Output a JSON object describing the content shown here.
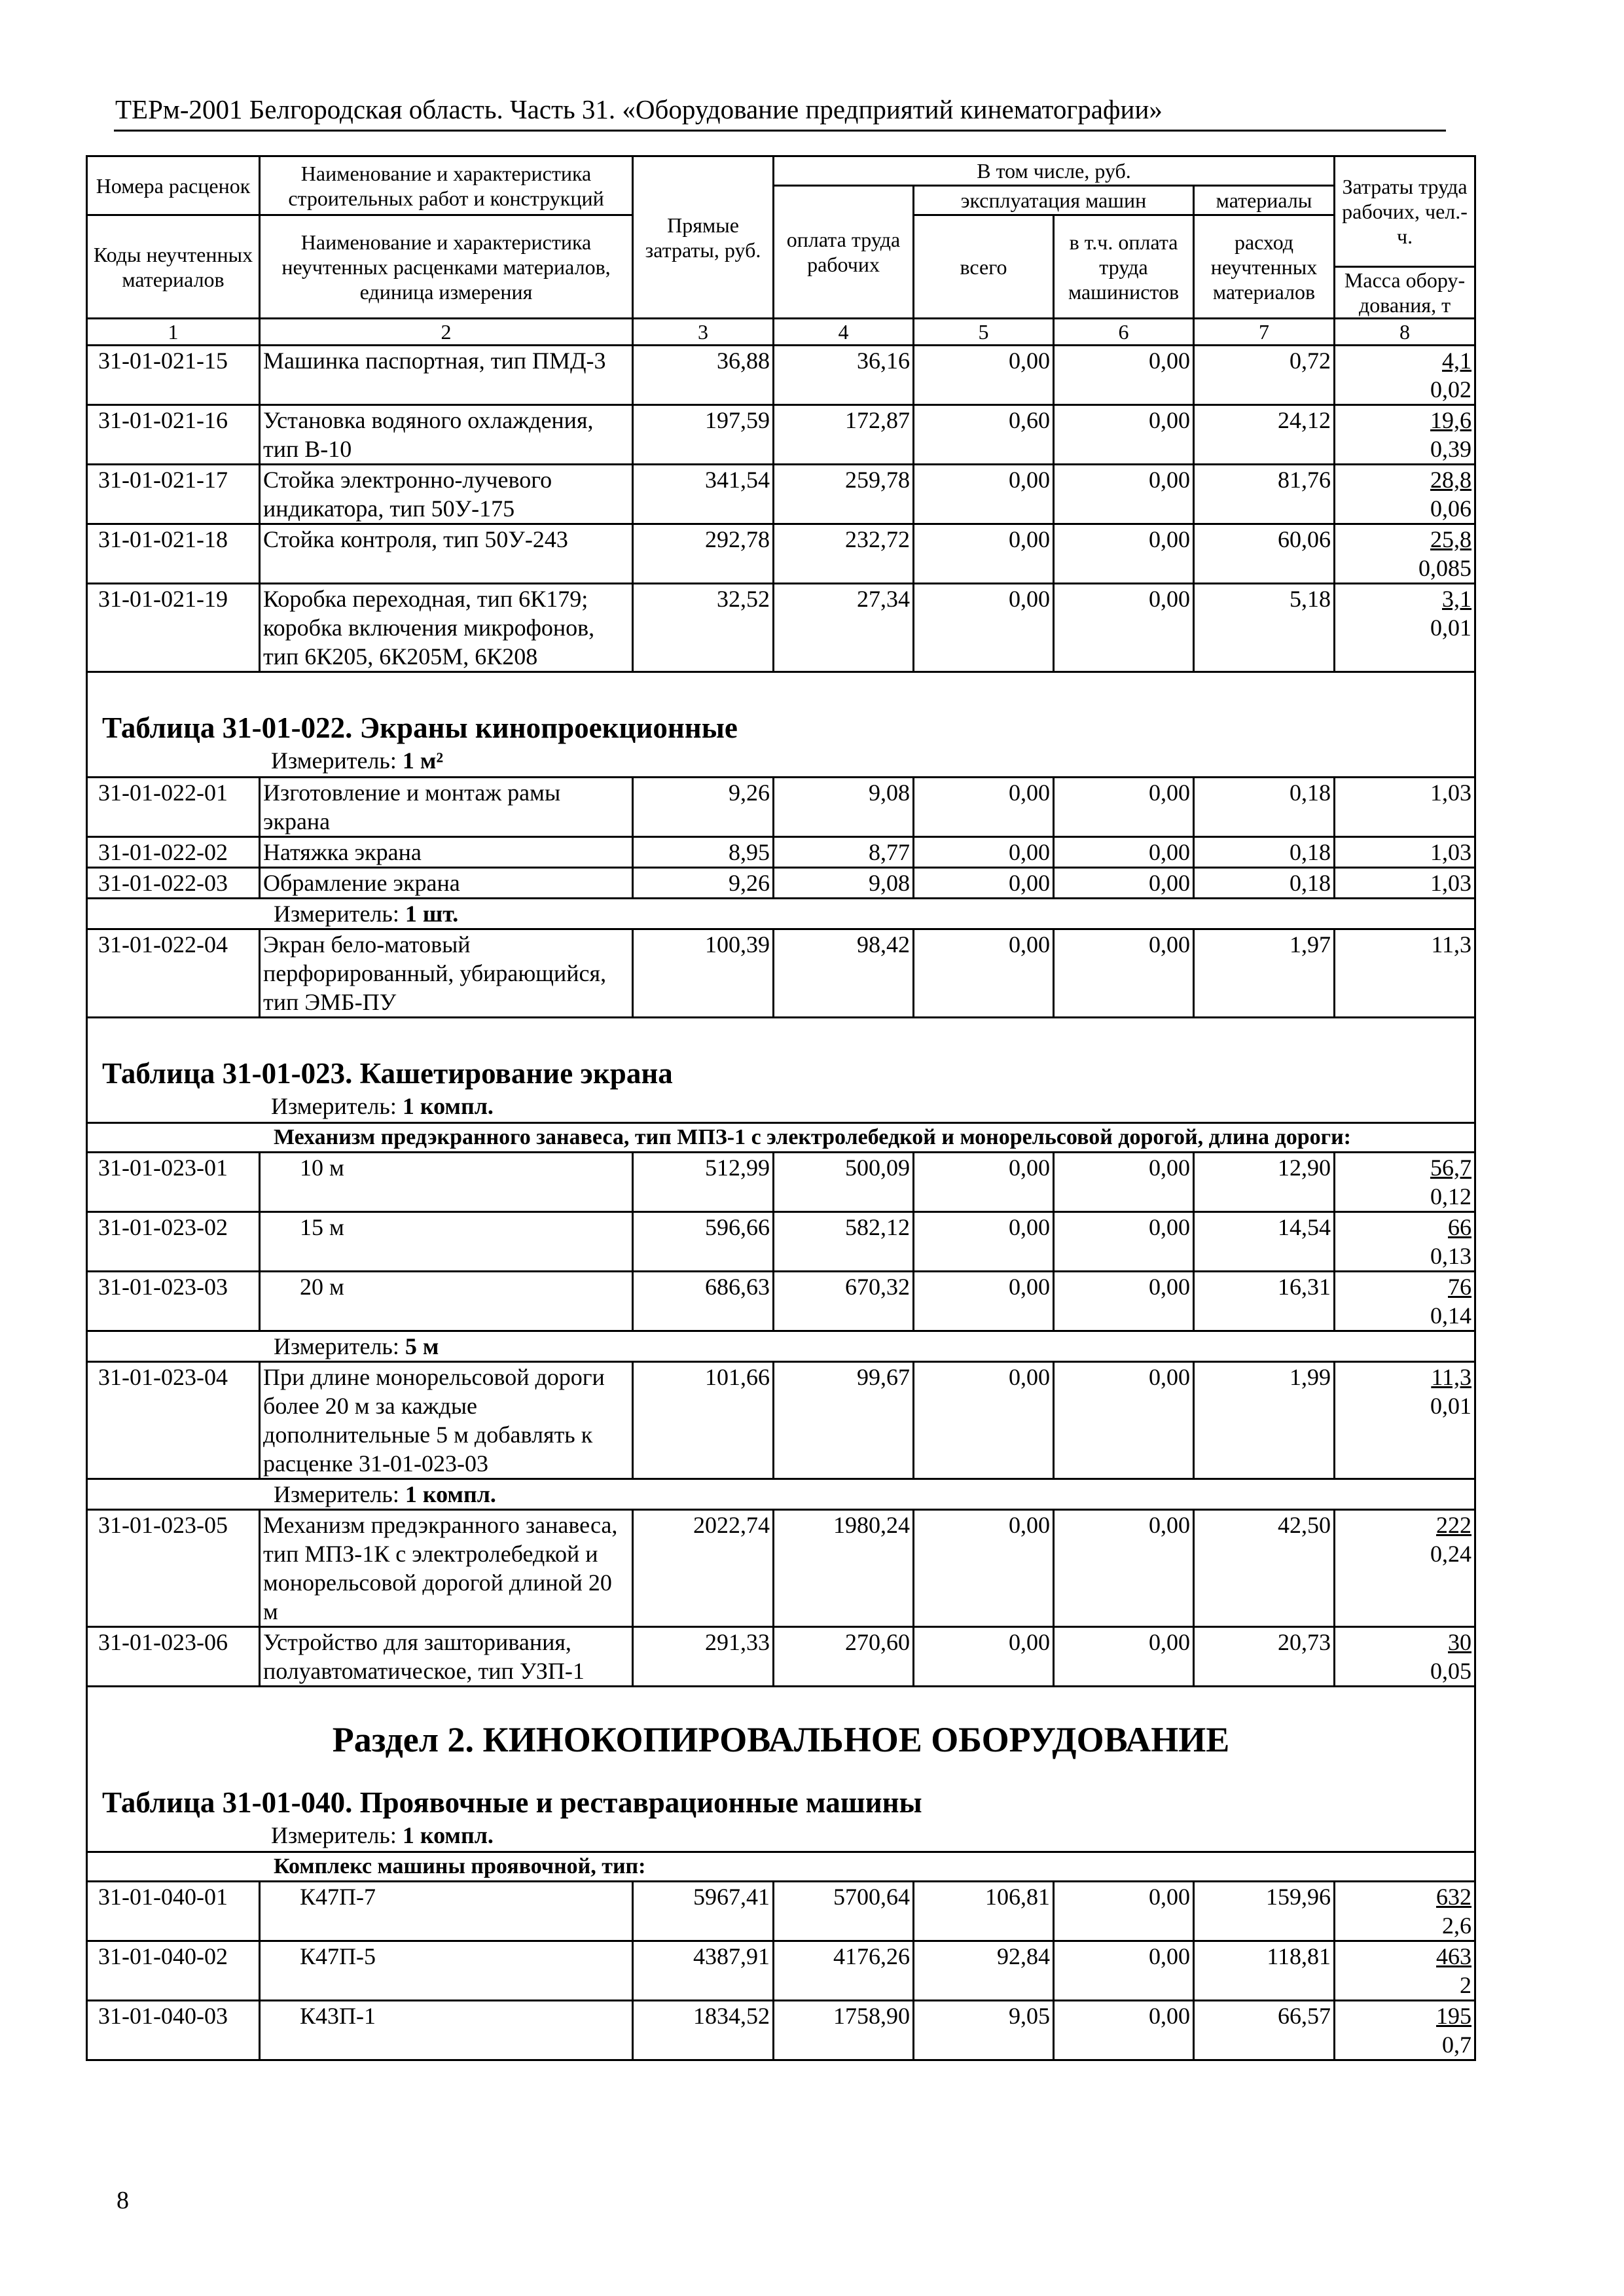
{
  "running_head": "ТЕРм-2001 Белгородская область. Часть 31. «Оборудование предприятий кинематографии»",
  "page_number": "8",
  "header": {
    "c1_top": "Номера расценок",
    "c2_top": "Наименование и характеристика строительных работ и конструкций",
    "c3": "Прямые затраты, руб.",
    "incl": "В том числе, руб.",
    "c4": "оплата труда рабочих",
    "machines": "эксплуатация машин",
    "materials": "материалы",
    "c5": "всего",
    "c6": "в т.ч. оплата труда машинистов",
    "c7": "расход неучтенных материалов",
    "c8_top": "Затраты труда рабочих, чел.-ч.",
    "c8_bottom": "Масса обору-дования, т",
    "c1_bottom": "Коды неучтенных материалов",
    "c2_bottom": "Наименование и характеристика неучтенных расценками материалов, единица измерения",
    "numbers": [
      "1",
      "2",
      "3",
      "4",
      "5",
      "6",
      "7",
      "8"
    ]
  },
  "body": [
    {
      "type": "row",
      "code": "31-01-021-15",
      "name": "Машинка паспортная, тип ПМД-3",
      "c3": "36,88",
      "c4": "36,16",
      "c5": "0,00",
      "c6": "0,00",
      "c7": "0,72",
      "labor": "4,1",
      "mass": "0,02"
    },
    {
      "type": "row",
      "code": "31-01-021-16",
      "name": "Установка водяного охлаждения, тип В-10",
      "c3": "197,59",
      "c4": "172,87",
      "c5": "0,60",
      "c6": "0,00",
      "c7": "24,12",
      "labor": "19,6",
      "mass": "0,39"
    },
    {
      "type": "row",
      "code": "31-01-021-17",
      "name": "Стойка электронно-лучевого индикатора, тип 50У-175",
      "c3": "341,54",
      "c4": "259,78",
      "c5": "0,00",
      "c6": "0,00",
      "c7": "81,76",
      "labor": "28,8",
      "mass": "0,06"
    },
    {
      "type": "row",
      "code": "31-01-021-18",
      "name": "Стойка контроля, тип 50У-243",
      "c3": "292,78",
      "c4": "232,72",
      "c5": "0,00",
      "c6": "0,00",
      "c7": "60,06",
      "labor": "25,8",
      "mass": "0,085"
    },
    {
      "type": "row",
      "code": "31-01-021-19",
      "name": "Коробка переходная, тип 6К179; коробка включения микрофонов, тип 6К205, 6К205М, 6К208",
      "c3": "32,52",
      "c4": "27,34",
      "c5": "0,00",
      "c6": "0,00",
      "c7": "5,18",
      "labor": "3,1",
      "mass": "0,01"
    },
    {
      "type": "title",
      "title": "Таблица 31-01-022. Экраны кинопроекционные",
      "measure_label": "Измеритель:",
      "measure_value": "1 м²"
    },
    {
      "type": "row",
      "code": "31-01-022-01",
      "name": "Изготовление и монтаж рамы экрана",
      "c3": "9,26",
      "c4": "9,08",
      "c5": "0,00",
      "c6": "0,00",
      "c7": "0,18",
      "value8": "1,03"
    },
    {
      "type": "row",
      "code": "31-01-022-02",
      "name": "Натяжка экрана",
      "c3": "8,95",
      "c4": "8,77",
      "c5": "0,00",
      "c6": "0,00",
      "c7": "0,18",
      "value8": "1,03"
    },
    {
      "type": "row",
      "code": "31-01-022-03",
      "name": "Обрамление экрана",
      "c3": "9,26",
      "c4": "9,08",
      "c5": "0,00",
      "c6": "0,00",
      "c7": "0,18",
      "value8": "1,03"
    },
    {
      "type": "measure",
      "measure_label": "Измеритель:",
      "measure_value": "1 шт."
    },
    {
      "type": "row",
      "code": "31-01-022-04",
      "name": "Экран бело-матовый перфорированный, убирающийся, тип ЭМБ-ПУ",
      "c3": "100,39",
      "c4": "98,42",
      "c5": "0,00",
      "c6": "0,00",
      "c7": "1,97",
      "value8": "11,3"
    },
    {
      "type": "title",
      "title": "Таблица 31-01-023. Кашетирование экрана",
      "measure_label": "Измеритель:",
      "measure_value": "1 компл."
    },
    {
      "type": "group",
      "text": "Механизм предэкранного занавеса, тип МПЗ-1 с электролебедкой и монорельсовой дорогой, длина дороги:"
    },
    {
      "type": "row",
      "indent": true,
      "code": "31-01-023-01",
      "name": "10 м",
      "c3": "512,99",
      "c4": "500,09",
      "c5": "0,00",
      "c6": "0,00",
      "c7": "12,90",
      "labor": "56,7",
      "mass": "0,12"
    },
    {
      "type": "row",
      "indent": true,
      "code": "31-01-023-02",
      "name": "15 м",
      "c3": "596,66",
      "c4": "582,12",
      "c5": "0,00",
      "c6": "0,00",
      "c7": "14,54",
      "labor": "66",
      "mass": "0,13"
    },
    {
      "type": "row",
      "indent": true,
      "code": "31-01-023-03",
      "name": "20 м",
      "c3": "686,63",
      "c4": "670,32",
      "c5": "0,00",
      "c6": "0,00",
      "c7": "16,31",
      "labor": "76",
      "mass": "0,14"
    },
    {
      "type": "measure",
      "measure_label": "Измеритель:",
      "measure_value": "5 м"
    },
    {
      "type": "row",
      "code": "31-01-023-04",
      "name": "При длине монорельсовой дороги более 20 м за каждые дополнительные 5 м добавлять к расценке 31-01-023-03",
      "c3": "101,66",
      "c4": "99,67",
      "c5": "0,00",
      "c6": "0,00",
      "c7": "1,99",
      "labor": "11,3",
      "mass": "0,01"
    },
    {
      "type": "measure",
      "measure_label": "Измеритель:",
      "measure_value": "1 компл."
    },
    {
      "type": "row",
      "code": "31-01-023-05",
      "name": "Механизм предэкранного занавеса, тип МПЗ-1К с электролебедкой и монорельсовой дорогой длиной 20 м",
      "c3": "2022,74",
      "c4": "1980,24",
      "c5": "0,00",
      "c6": "0,00",
      "c7": "42,50",
      "labor": "222",
      "mass": "0,24"
    },
    {
      "type": "row",
      "code": "31-01-023-06",
      "name": "Устройство для зашторивания, полуавтоматическое, тип УЗП-1",
      "c3": "291,33",
      "c4": "270,60",
      "c5": "0,00",
      "c6": "0,00",
      "c7": "20,73",
      "labor": "30",
      "mass": "0,05"
    },
    {
      "type": "title",
      "section": "Раздел 2. КИНОКОПИРОВАЛЬНОЕ ОБОРУДОВАНИЕ",
      "title": "Таблица 31-01-040. Проявочные и реставрационные машины",
      "measure_label": "Измеритель:",
      "measure_value": "1 компл."
    },
    {
      "type": "group",
      "text": "Комплекс машины проявочной, тип:"
    },
    {
      "type": "row",
      "indent": true,
      "code": "31-01-040-01",
      "name": "К47П-7",
      "c3": "5967,41",
      "c4": "5700,64",
      "c5": "106,81",
      "c6": "0,00",
      "c7": "159,96",
      "labor": "632",
      "mass": "2,6"
    },
    {
      "type": "row",
      "indent": true,
      "code": "31-01-040-02",
      "name": "К47П-5",
      "c3": "4387,91",
      "c4": "4176,26",
      "c5": "92,84",
      "c6": "0,00",
      "c7": "118,81",
      "labor": "463",
      "mass": "2"
    },
    {
      "type": "row",
      "indent": true,
      "code": "31-01-040-03",
      "name": "К43П-1",
      "c3": "1834,52",
      "c4": "1758,90",
      "c5": "9,05",
      "c6": "0,00",
      "c7": "66,57",
      "labor": "195",
      "mass": "0,7"
    }
  ]
}
